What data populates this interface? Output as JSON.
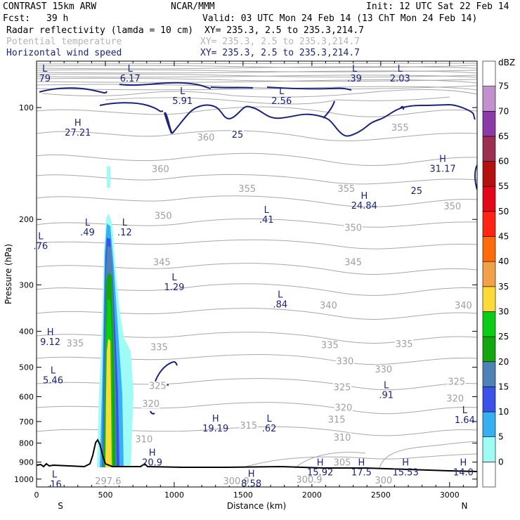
{
  "header": {
    "model": "CONTRAST 15km ARW",
    "center": "NCAR/MMM",
    "init": "Init: 12 UTC Sat 22 Feb 14",
    "fcst_label": "Fcst:",
    "fcst_value": "39 h",
    "valid": "Valid: 03 UTC Mon 24 Feb 14 (13 ChT Mon 24 Feb 14)"
  },
  "fields": [
    {
      "name": "Radar reflectivity (lamda = 10 cm)",
      "xy": "XY= 235.3,  2.5 to 235.3,214.7",
      "color": "#000000"
    },
    {
      "name": "Potential temperature",
      "xy": "XY= 235.3,  2.5 to 235.3,214.7",
      "color": "#b4b4b4"
    },
    {
      "name": "Horizontal wind speed",
      "xy": "XY= 235.3,  2.5 to 235.3,214.7",
      "color": "#1a237e"
    }
  ],
  "chart_data": {
    "type": "contour",
    "xlabel": "Distance (km)",
    "ylabel": "Pressure (hPa)",
    "xlim": [
      0,
      3200
    ],
    "ylim": [
      1050,
      75
    ],
    "y_scale": "log",
    "x_ticks": [
      0,
      500,
      1000,
      1500,
      2000,
      2500,
      3000
    ],
    "x_tick_labels": [
      "0",
      "500",
      "1000",
      "1500",
      "2000",
      "2500",
      "3000"
    ],
    "y_ticks": [
      100,
      200,
      300,
      400,
      500,
      600,
      700,
      800,
      900,
      1000
    ],
    "y_tick_labels": [
      "100",
      "200",
      "300",
      "400",
      "500",
      "600",
      "700",
      "800",
      "900",
      "1000"
    ],
    "endpoints": {
      "left": "S",
      "right": "N"
    },
    "colorbar": {
      "unit": "dBZ",
      "levels": [
        "0",
        "5",
        "10",
        "15",
        "20",
        "25",
        "30",
        "35",
        "40",
        "45",
        "50",
        "55",
        "60",
        "65",
        "70",
        "75"
      ],
      "colors": [
        "#ffffff",
        "#9ffbf5",
        "#36b0f1",
        "#3a52e8",
        "#4f83b8",
        "#14a60f",
        "#0bcc17",
        "#ffd935",
        "#f2a04a",
        "#ff6a0a",
        "#ff2414",
        "#e2081a",
        "#b41010",
        "#9c3050",
        "#8c3aa8",
        "#c290cc",
        "#ffffff"
      ]
    },
    "theta_labels": [
      {
        "text": "360",
        "x": 900,
        "p": 146
      },
      {
        "text": "360",
        "x": 1230,
        "p": 120
      },
      {
        "text": "355",
        "x": 1530,
        "p": 165
      },
      {
        "text": "355",
        "x": 2250,
        "p": 165
      },
      {
        "text": "355",
        "x": 2640,
        "p": 113
      },
      {
        "text": "350",
        "x": 920,
        "p": 195
      },
      {
        "text": "350",
        "x": 2300,
        "p": 210
      },
      {
        "text": "350",
        "x": 3020,
        "p": 184
      },
      {
        "text": "345",
        "x": 910,
        "p": 260
      },
      {
        "text": "345",
        "x": 2300,
        "p": 260
      },
      {
        "text": "340",
        "x": 2120,
        "p": 340
      },
      {
        "text": "340",
        "x": 3100,
        "p": 340
      },
      {
        "text": "335",
        "x": 280,
        "p": 430
      },
      {
        "text": "335",
        "x": 890,
        "p": 440
      },
      {
        "text": "335",
        "x": 2130,
        "p": 435
      },
      {
        "text": "335",
        "x": 2670,
        "p": 432
      },
      {
        "text": "330",
        "x": 2240,
        "p": 480
      },
      {
        "text": "330",
        "x": 2520,
        "p": 505
      },
      {
        "text": "325",
        "x": 880,
        "p": 560
      },
      {
        "text": "325",
        "x": 2220,
        "p": 565
      },
      {
        "text": "325",
        "x": 3050,
        "p": 545
      },
      {
        "text": "320",
        "x": 830,
        "p": 625
      },
      {
        "text": "320",
        "x": 2230,
        "p": 640
      },
      {
        "text": "320",
        "x": 3040,
        "p": 605
      },
      {
        "text": "315",
        "x": 2180,
        "p": 690
      },
      {
        "text": "315",
        "x": 1540,
        "p": 715
      },
      {
        "text": "310",
        "x": 780,
        "p": 780
      },
      {
        "text": "310",
        "x": 2220,
        "p": 770
      },
      {
        "text": "305",
        "x": 2220,
        "p": 900
      },
      {
        "text": "300",
        "x": 2520,
        "p": 1005
      },
      {
        "text": "300.9",
        "x": 1980,
        "p": 1000
      },
      {
        "text": "300.9",
        "x": 1450,
        "p": 1010
      },
      {
        "text": "297.6",
        "x": 520,
        "p": 1010
      }
    ],
    "wind_contour_labels": [
      {
        "text": "25",
        "x": 1460,
        "p": 118
      },
      {
        "text": "25",
        "x": 2760,
        "p": 167
      }
    ],
    "extrema": [
      {
        "type": "L",
        "value": "79",
        "x": 60,
        "p": 80
      },
      {
        "type": "L",
        "value": "6.17",
        "x": 680,
        "p": 80
      },
      {
        "type": "L",
        "value": "5.91",
        "x": 1060,
        "p": 92
      },
      {
        "type": "L",
        "value": "2.56",
        "x": 1780,
        "p": 92
      },
      {
        "type": "L",
        "value": ".39",
        "x": 2310,
        "p": 80
      },
      {
        "type": "L",
        "value": "2.03",
        "x": 2640,
        "p": 80
      },
      {
        "type": "H",
        "value": "27.21",
        "x": 300,
        "p": 112
      },
      {
        "type": "H",
        "value": "31.17",
        "x": 2950,
        "p": 140
      },
      {
        "type": "H",
        "value": "24.84",
        "x": 2380,
        "p": 176
      },
      {
        "type": "L",
        "value": ".41",
        "x": 1670,
        "p": 192
      },
      {
        "type": "L",
        "value": ".49",
        "x": 370,
        "p": 208
      },
      {
        "type": "L",
        "value": ".12",
        "x": 640,
        "p": 208
      },
      {
        "type": "L",
        "value": ".76",
        "x": 30,
        "p": 226
      },
      {
        "type": "L",
        "value": "1.29",
        "x": 1000,
        "p": 292
      },
      {
        "type": "L",
        "value": ".84",
        "x": 1770,
        "p": 325
      },
      {
        "type": "H",
        "value": "9.12",
        "x": 100,
        "p": 410
      },
      {
        "type": "L",
        "value": "5.46",
        "x": 120,
        "p": 520
      },
      {
        "type": "L",
        "value": ".91",
        "x": 2540,
        "p": 570
      },
      {
        "type": "L",
        "value": "1.64",
        "x": 3110,
        "p": 665
      },
      {
        "type": "H",
        "value": "19.19",
        "x": 1300,
        "p": 700
      },
      {
        "type": "L",
        "value": ".62",
        "x": 1690,
        "p": 700
      },
      {
        "type": "H",
        "value": "20.9",
        "x": 840,
        "p": 865
      },
      {
        "type": "H",
        "value": "15.92",
        "x": 2060,
        "p": 920
      },
      {
        "type": "H",
        "value": "17.5",
        "x": 2360,
        "p": 920
      },
      {
        "type": "H",
        "value": "15.53",
        "x": 2680,
        "p": 920
      },
      {
        "type": "H",
        "value": "14.0",
        "x": 3100,
        "p": 920
      },
      {
        "type": "L",
        "value": ".16",
        "x": 130,
        "p": 990
      },
      {
        "type": "H",
        "value": "8.58",
        "x": 1560,
        "p": 985
      }
    ]
  }
}
